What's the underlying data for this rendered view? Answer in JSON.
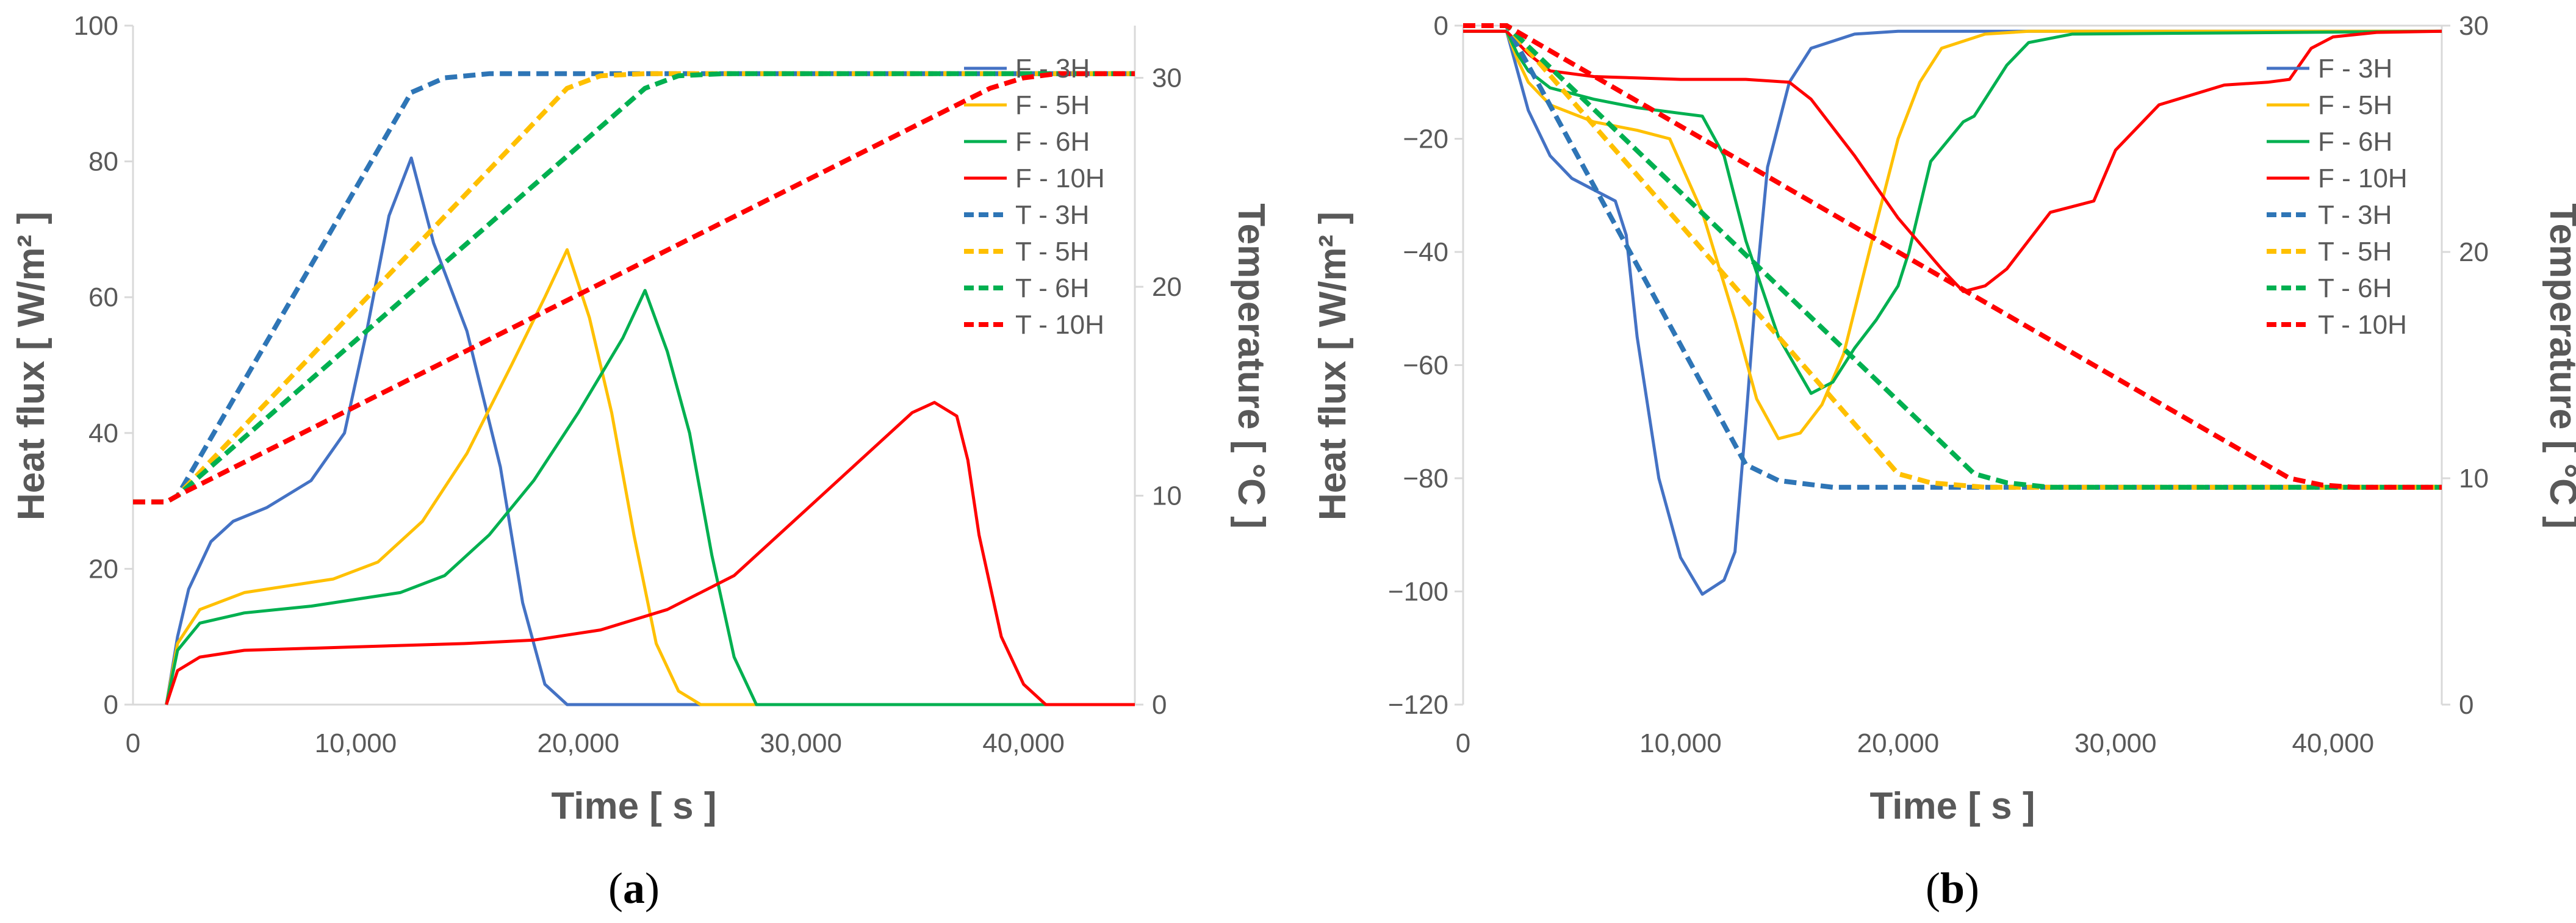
{
  "chart_data": [
    {
      "type": "line",
      "panel": "a",
      "caption_open": "(",
      "caption_letter": "a",
      "caption_close": ")",
      "xlabel": "Time [ s ]",
      "ylabel": "Heat flux [ W/m² ]",
      "y2label": "Temperature [ °C ]",
      "xlim": [
        0,
        45000
      ],
      "ylim": [
        0,
        100
      ],
      "y2lim": [
        0,
        32.5
      ],
      "xticks": [
        "0",
        "10,000",
        "20,000",
        "30,000",
        "40,000"
      ],
      "yticks": [
        "0",
        "20",
        "40",
        "60",
        "80",
        "100"
      ],
      "y2ticks": [
        "0",
        "10",
        "20",
        "30"
      ],
      "legend_position": "right-middle",
      "series": [
        {
          "name": "F - 3H",
          "axis": "y",
          "color": "#4472C4",
          "dash": "solid",
          "x": [
            1500,
            2000,
            2500,
            3500,
            4500,
            6000,
            8000,
            9500,
            10500,
            11500,
            12500,
            13500,
            15000,
            16500,
            17500,
            18500,
            19500,
            45000
          ],
          "y": [
            0,
            10,
            17,
            24,
            27,
            29,
            33,
            40,
            55,
            72,
            80.5,
            68,
            55,
            35,
            15,
            3,
            0,
            0
          ]
        },
        {
          "name": "F - 5H",
          "axis": "y",
          "color": "#FFC000",
          "dash": "solid",
          "x": [
            1500,
            2000,
            3000,
            5000,
            7000,
            9000,
            11000,
            13000,
            15000,
            17000,
            18500,
            19500,
            20500,
            21500,
            22500,
            23500,
            24500,
            25500,
            45000
          ],
          "y": [
            0,
            9,
            14,
            16.5,
            17.5,
            18.5,
            21,
            27,
            37,
            50,
            60,
            67,
            57,
            43,
            25,
            9,
            2,
            0,
            0
          ]
        },
        {
          "name": "F - 6H",
          "axis": "y",
          "color": "#00B050",
          "dash": "solid",
          "x": [
            1500,
            2000,
            3000,
            5000,
            8000,
            10000,
            12000,
            14000,
            16000,
            18000,
            20000,
            22000,
            23000,
            24000,
            25000,
            26000,
            27000,
            28000,
            45000
          ],
          "y": [
            0,
            8,
            12,
            13.5,
            14.5,
            15.5,
            16.5,
            19,
            25,
            33,
            43,
            54,
            61,
            52,
            40,
            22,
            7,
            0,
            0
          ]
        },
        {
          "name": "F - 10H",
          "axis": "y",
          "color": "#FF0000",
          "dash": "solid",
          "x": [
            1500,
            2000,
            3000,
            5000,
            10000,
            15000,
            18000,
            21000,
            24000,
            27000,
            30000,
            33000,
            35000,
            36000,
            37000,
            37500,
            38000,
            39000,
            40000,
            41000,
            45000
          ],
          "y": [
            0,
            5,
            7,
            8,
            8.5,
            9,
            9.5,
            11,
            14,
            19,
            28,
            37,
            43,
            44.5,
            42.5,
            36,
            25,
            10,
            3,
            0,
            0
          ]
        },
        {
          "name": "T - 3H",
          "axis": "y2",
          "color": "#2E75B6",
          "dash": "dashed",
          "x": [
            0,
            1500,
            2000,
            12500,
            14000,
            16000,
            45000
          ],
          "y": [
            9.7,
            9.7,
            10,
            29.3,
            30,
            30.2,
            30.2
          ]
        },
        {
          "name": "T - 5H",
          "axis": "y2",
          "color": "#FFC000",
          "dash": "dashed",
          "x": [
            0,
            1500,
            2000,
            19500,
            21000,
            23000,
            45000
          ],
          "y": [
            9.7,
            9.7,
            10,
            29.5,
            30.1,
            30.2,
            30.2
          ]
        },
        {
          "name": "T - 6H",
          "axis": "y2",
          "color": "#00B050",
          "dash": "dashed",
          "x": [
            0,
            1500,
            2000,
            23000,
            24500,
            26500,
            45000
          ],
          "y": [
            9.7,
            9.7,
            10,
            29.5,
            30.1,
            30.2,
            30.2
          ]
        },
        {
          "name": "T - 10H",
          "axis": "y2",
          "color": "#FF0000",
          "dash": "dashed",
          "x": [
            0,
            1500,
            2000,
            38500,
            40000,
            41500,
            45000
          ],
          "y": [
            9.7,
            9.7,
            10,
            29.5,
            30.0,
            30.2,
            30.2
          ]
        }
      ]
    },
    {
      "type": "line",
      "panel": "b",
      "caption_open": "(",
      "caption_letter": "b",
      "caption_close": ")",
      "xlabel": "Time [ s ]",
      "ylabel": "Heat flux [ W/m² ]",
      "y2label": "Temperature [ °C ]",
      "xlim": [
        0,
        45000
      ],
      "ylim": [
        -120,
        0
      ],
      "y2lim": [
        0,
        30
      ],
      "xticks": [
        "0",
        "10,000",
        "20,000",
        "30,000",
        "40,000"
      ],
      "yticks": [
        "-120",
        "-100",
        "-80",
        "-60",
        "-40",
        "-20",
        "0"
      ],
      "y2ticks": [
        "0",
        "10",
        "20",
        "30"
      ],
      "legend_position": "right-middle",
      "series": [
        {
          "name": "F - 3H",
          "axis": "y",
          "color": "#4472C4",
          "dash": "solid",
          "x": [
            0,
            2000,
            2500,
            3000,
            4000,
            5000,
            6000,
            7000,
            7500,
            8000,
            9000,
            10000,
            11000,
            12000,
            12500,
            13000,
            13500,
            14000,
            15000,
            16000,
            18000,
            20000,
            45000
          ],
          "y": [
            -1,
            -1,
            -8,
            -15,
            -23,
            -27,
            -29,
            -31,
            -37,
            -55,
            -80,
            -94,
            -100.5,
            -98,
            -93,
            -70,
            -45,
            -25,
            -10,
            -4,
            -1.5,
            -1,
            -1
          ]
        },
        {
          "name": "F - 5H",
          "axis": "y",
          "color": "#FFC000",
          "dash": "solid",
          "x": [
            0,
            2000,
            2500,
            3000,
            4000,
            6000,
            8000,
            9500,
            11000,
            12500,
            13500,
            14500,
            15500,
            16500,
            17500,
            19000,
            20000,
            21000,
            22000,
            24000,
            26000,
            45000
          ],
          "y": [
            -1,
            -1,
            -6,
            -10,
            -14,
            -17,
            -18.5,
            -20,
            -33,
            -52,
            -66,
            -73,
            -72,
            -67,
            -58,
            -35,
            -20,
            -10,
            -4,
            -1.5,
            -1,
            -1
          ]
        },
        {
          "name": "F - 6H",
          "axis": "y",
          "color": "#00B050",
          "dash": "solid",
          "x": [
            0,
            2000,
            2500,
            3000,
            4000,
            6000,
            8000,
            10000,
            11000,
            12000,
            13000,
            14500,
            16000,
            17000,
            18000,
            19000,
            20000,
            20500,
            21500,
            23000,
            23500,
            25000,
            26000,
            28000,
            45000
          ],
          "y": [
            -1,
            -1,
            -5,
            -8,
            -11,
            -13,
            -14.5,
            -15.5,
            -16,
            -23,
            -38,
            -55,
            -65,
            -63,
            -57,
            -52,
            -46,
            -40,
            -24,
            -17,
            -16,
            -7,
            -3,
            -1.5,
            -1
          ]
        },
        {
          "name": "F - 10H",
          "axis": "y",
          "color": "#FF0000",
          "dash": "solid",
          "x": [
            0,
            2000,
            3000,
            4000,
            6000,
            10000,
            13000,
            15000,
            16000,
            18000,
            20000,
            22000,
            23000,
            24000,
            25000,
            26000,
            27000,
            28000,
            29000,
            30000,
            32000,
            35000,
            37000,
            38000,
            39000,
            40000,
            42000,
            45000
          ],
          "y": [
            -1,
            -1,
            -5,
            -8,
            -9,
            -9.5,
            -9.5,
            -10,
            -13,
            -23,
            -34,
            -43,
            -47,
            -46,
            -43,
            -38,
            -33,
            -32,
            -31,
            -22,
            -14,
            -10.5,
            -10,
            -9.5,
            -4,
            -2,
            -1.2,
            -1
          ]
        },
        {
          "name": "T - 3H",
          "axis": "y2",
          "color": "#2E75B6",
          "dash": "dashed",
          "x": [
            0,
            2000,
            13000,
            14500,
            17000,
            45000
          ],
          "y": [
            30,
            30,
            10.6,
            9.9,
            9.6,
            9.6
          ]
        },
        {
          "name": "T - 5H",
          "axis": "y2",
          "color": "#FFC000",
          "dash": "dashed",
          "x": [
            0,
            2000,
            20000,
            21500,
            24000,
            45000
          ],
          "y": [
            30,
            30,
            10.2,
            9.8,
            9.6,
            9.6
          ]
        },
        {
          "name": "T - 6H",
          "axis": "y2",
          "color": "#00B050",
          "dash": "dashed",
          "x": [
            0,
            2000,
            23500,
            25000,
            27000,
            45000
          ],
          "y": [
            30,
            30,
            10.2,
            9.8,
            9.6,
            9.6
          ]
        },
        {
          "name": "T - 10H",
          "axis": "y2",
          "color": "#FF0000",
          "dash": "dashed",
          "x": [
            0,
            2000,
            38000,
            39500,
            41000,
            45000
          ],
          "y": [
            30,
            30,
            10.0,
            9.7,
            9.6,
            9.6
          ]
        }
      ]
    }
  ]
}
